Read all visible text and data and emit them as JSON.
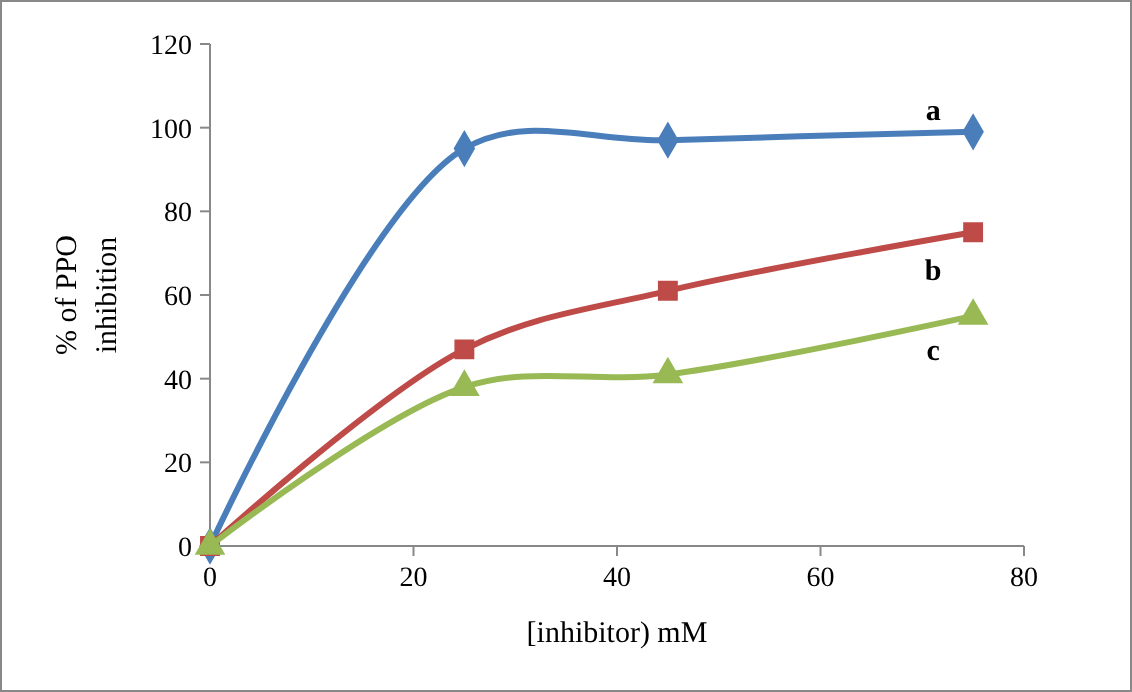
{
  "chart_data": {
    "type": "line",
    "xlabel": "[inhibitor) mM",
    "ylabel": "% of PPO inhibition",
    "x": [
      0,
      25,
      45,
      75
    ],
    "xlim": [
      0,
      80
    ],
    "xticks": [
      0,
      20,
      40,
      60,
      80
    ],
    "ylim": [
      0,
      120
    ],
    "yticks": [
      0,
      20,
      40,
      60,
      80,
      100,
      120
    ],
    "grid": false,
    "line_style": "solid",
    "series": [
      {
        "name": "a",
        "color": "#4a7ebb",
        "marker": "diamond",
        "values": [
          0,
          95,
          97,
          99
        ]
      },
      {
        "name": "b",
        "color": "#be4b48",
        "marker": "square",
        "values": [
          0,
          47,
          61,
          75
        ]
      },
      {
        "name": "c",
        "color": "#98b954",
        "marker": "triangle",
        "values": [
          0,
          38,
          41,
          55
        ]
      }
    ]
  }
}
